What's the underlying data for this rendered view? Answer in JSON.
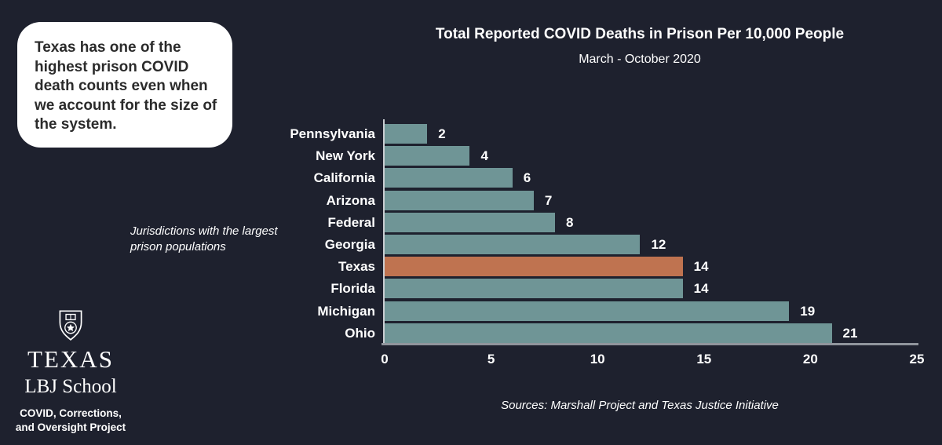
{
  "colors": {
    "background": "#1e212e",
    "bar": "#6f9596",
    "highlight": "#bf7350",
    "text": "#ffffff",
    "callout_bg": "#ffffff",
    "callout_text": "#2b2b2b",
    "axis_line": "#90959c"
  },
  "callout": {
    "text": "Texas has one of the highest prison COVID death counts even when we account for the size of the system."
  },
  "chart_data": {
    "type": "bar",
    "orientation": "horizontal",
    "title": "Total Reported COVID Deaths in Prison Per 10,000 People",
    "subtitle": "March - October 2020",
    "categories": [
      "Pennsylvania",
      "New York",
      "California",
      "Arizona",
      "Federal",
      "Georgia",
      "Texas",
      "Florida",
      "Michigan",
      "Ohio"
    ],
    "values": [
      2,
      4,
      6,
      7,
      8,
      12,
      14,
      14,
      19,
      21
    ],
    "highlight_category": "Texas",
    "x_ticks": [
      0,
      5,
      10,
      15,
      20,
      25
    ],
    "xlim": [
      0,
      25
    ],
    "grid": false,
    "legend": "none",
    "annotation": "Jurisdictions with the largest prison populations",
    "source_note": "Sources: Marshall Project and Texas Justice Initiative"
  },
  "logo": {
    "shield_icon": "texas-shield-icon",
    "brand_top": "TEXAS",
    "brand_bottom": "LBJ School",
    "project_line1": "COVID, Corrections,",
    "project_line2": "and Oversight Project"
  }
}
